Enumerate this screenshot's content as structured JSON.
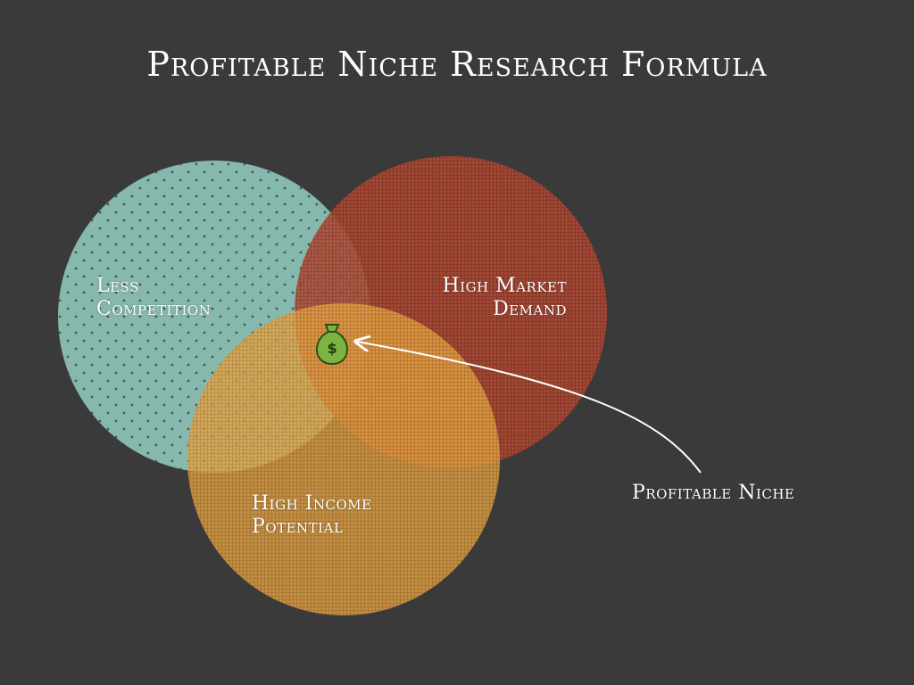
{
  "title": "Profitable Niche Research Formula",
  "circles": [
    {
      "name": "Less Competition",
      "line1": "Less",
      "line2": "Competition",
      "color": "#86b8ae"
    },
    {
      "name": "High Market Demand",
      "line1": "High Market",
      "line2": "Demand",
      "color": "#b04a35"
    },
    {
      "name": "High Income Potential",
      "line1": "High Income",
      "line2": "Potential",
      "color": "#e6a445"
    }
  ],
  "callout": {
    "label": "Profitable Niche"
  },
  "icon": {
    "name": "money-bag-icon",
    "symbol": "$",
    "color": "#7cb342"
  },
  "colors": {
    "background": "#3a3a3a",
    "text": "#ffffff"
  }
}
